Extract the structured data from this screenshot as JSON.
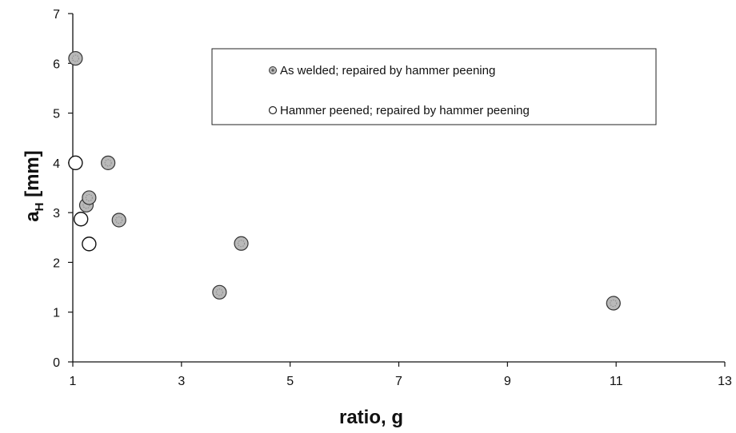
{
  "chart_data": {
    "type": "scatter",
    "title": "",
    "xlabel": "ratio, g",
    "ylabel": {
      "main": "a",
      "sub": "H",
      "unit": " [mm]"
    },
    "xlim": [
      1,
      13
    ],
    "ylim": [
      0,
      7
    ],
    "xticks": [
      "1",
      "3",
      "5",
      "7",
      "9",
      "11",
      "13"
    ],
    "yticks": [
      "0",
      "1",
      "2",
      "3",
      "4",
      "5",
      "6",
      "7"
    ],
    "grid": false,
    "legend_position": "top-right",
    "series": [
      {
        "name": "As welded; repaired by hammer peening",
        "marker": "filled-circle",
        "color": "#b9b9b9",
        "x": [
          1.05,
          1.65,
          1.25,
          1.3,
          1.85,
          3.7,
          4.1,
          10.95
        ],
        "y": [
          6.1,
          4.0,
          3.15,
          3.3,
          2.85,
          1.4,
          2.38,
          1.18
        ]
      },
      {
        "name": "Hammer peened; repaired by hammer peening",
        "marker": "open-circle",
        "color": "#ffffff",
        "x": [
          1.05,
          1.15,
          1.3
        ],
        "y": [
          4.0,
          2.87,
          2.37
        ]
      }
    ]
  }
}
